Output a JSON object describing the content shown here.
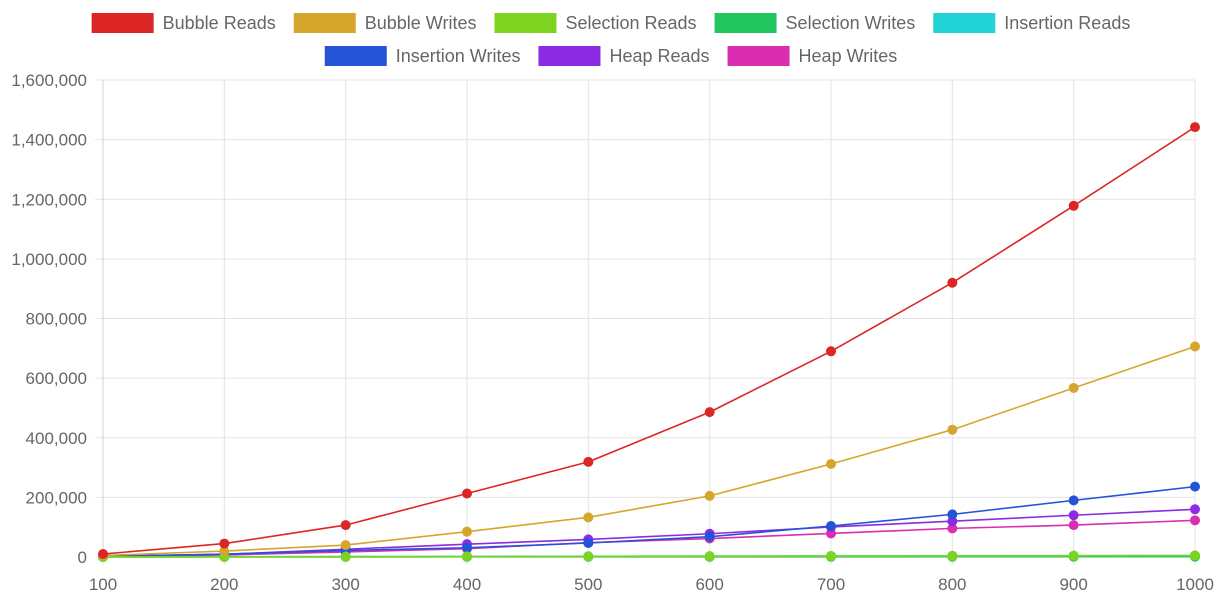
{
  "chart_data": {
    "type": "line",
    "x": [
      100,
      200,
      300,
      400,
      500,
      600,
      700,
      800,
      900,
      1000
    ],
    "x_tick_labels": [
      "100",
      "200",
      "300",
      "400",
      "500",
      "600",
      "700",
      "800",
      "900",
      "1000"
    ],
    "y_tick_labels": [
      "0",
      "200,000",
      "400,000",
      "600,000",
      "800,000",
      "1,000,000",
      "1,200,000",
      "1,400,000",
      "1,600,000"
    ],
    "ylim": [
      0,
      1600000
    ],
    "xlabel": "",
    "ylabel": "",
    "title": "",
    "grid": true,
    "legend_position": "top",
    "series": [
      {
        "name": "Bubble Reads",
        "color": "#dc2626",
        "values": [
          10000,
          45000,
          107000,
          213000,
          319000,
          486000,
          690000,
          920000,
          1178000,
          1442000
        ]
      },
      {
        "name": "Bubble Writes",
        "color": "#d4a72c",
        "values": [
          5000,
          20000,
          40000,
          85000,
          133000,
          205000,
          312000,
          427000,
          567000,
          706000
        ]
      },
      {
        "name": "Selection Reads",
        "color": "#7ed321",
        "values": [
          200,
          500,
          900,
          1500,
          2000,
          2500,
          3000,
          3600,
          4200,
          5000
        ]
      },
      {
        "name": "Selection Writes",
        "color": "#22c55e",
        "values": [
          100,
          200,
          300,
          400,
          500,
          600,
          700,
          800,
          900,
          1000
        ]
      },
      {
        "name": "Insertion Reads",
        "color": "#22d3d6",
        "values": [
          500,
          1000,
          1500,
          2000,
          2500,
          3000,
          3500,
          4000,
          4500,
          5000
        ]
      },
      {
        "name": "Insertion Writes",
        "color": "#2453d8",
        "values": [
          2500,
          9500,
          22000,
          31000,
          47000,
          68000,
          104000,
          143000,
          190000,
          236000
        ]
      },
      {
        "name": "Heap Reads",
        "color": "#8b2be2",
        "values": [
          2000,
          9000,
          26000,
          43000,
          59000,
          78000,
          101000,
          120000,
          140000,
          160000
        ]
      },
      {
        "name": "Heap Writes",
        "color": "#d92eb0",
        "values": [
          1500,
          7000,
          17000,
          28000,
          48000,
          62000,
          79000,
          96000,
          107000,
          123000
        ]
      }
    ]
  }
}
